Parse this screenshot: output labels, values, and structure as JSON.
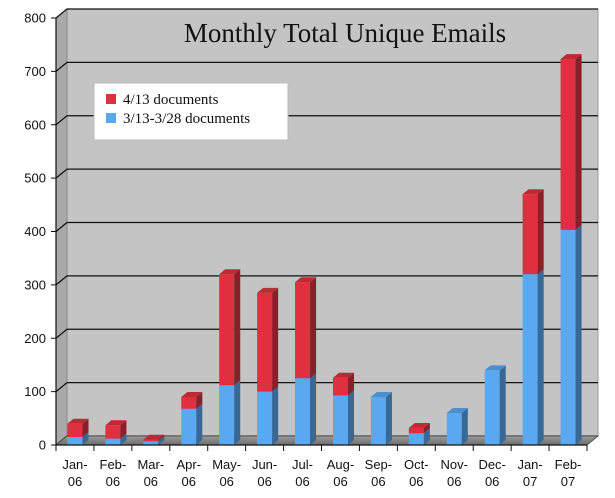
{
  "chart_data": {
    "type": "bar",
    "stacked": true,
    "title": "Monthly Total Unique Emails",
    "xlabel": "",
    "ylabel": "",
    "ylim": [
      0,
      800
    ],
    "yticks": [
      0,
      100,
      200,
      300,
      400,
      500,
      600,
      700,
      800
    ],
    "grid": true,
    "legend_position": "top-left",
    "categories": [
      [
        "Jan-",
        "06"
      ],
      [
        "Feb-",
        "06"
      ],
      [
        "Mar-",
        "06"
      ],
      [
        "Apr-",
        "06"
      ],
      [
        "May-",
        "06"
      ],
      [
        "Jun-",
        "06"
      ],
      [
        "Jul-",
        "06"
      ],
      [
        "Aug-",
        "06"
      ],
      [
        "Sep-",
        "06"
      ],
      [
        "Oct-",
        "06"
      ],
      [
        "Nov-",
        "06"
      ],
      [
        "Dec-",
        "06"
      ],
      [
        "Jan-",
        "07"
      ],
      [
        "Feb-",
        "07"
      ]
    ],
    "series": [
      {
        "name": "3/13-3/28 documents",
        "color": "#5aa8f0",
        "values": [
          15,
          12,
          7,
          68,
          112,
          100,
          125,
          93,
          90,
          22,
          60,
          140,
          320,
          403
        ]
      },
      {
        "name": "4/13 documents",
        "color": "#e03040",
        "values": [
          25,
          25,
          3,
          22,
          208,
          185,
          180,
          33,
          0,
          10,
          0,
          0,
          150,
          320
        ]
      }
    ],
    "legend_order": [
      "4/13 documents",
      "3/13-3/28 documents"
    ]
  }
}
